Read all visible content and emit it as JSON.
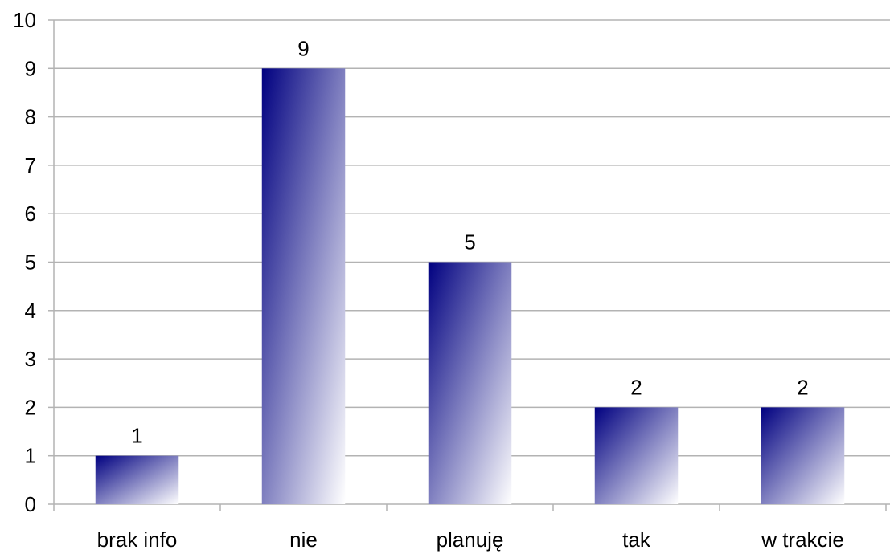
{
  "chart_data": {
    "type": "bar",
    "categories": [
      "brak info",
      "nie",
      "planuję",
      "tak",
      "w trakcie"
    ],
    "values": [
      1,
      9,
      5,
      2,
      2
    ],
    "data_labels": [
      "1",
      "9",
      "5",
      "2",
      "2"
    ],
    "y_ticks": [
      "0",
      "1",
      "2",
      "3",
      "4",
      "5",
      "6",
      "7",
      "8",
      "9",
      "10"
    ],
    "ylim": [
      0,
      10
    ],
    "grid": true,
    "legend": "none",
    "colors": {
      "bar_top": "#000080",
      "bar_bottom": "#ffffff",
      "grid": "#b3b3b3",
      "axis": "#b3b3b3",
      "text": "#000000"
    }
  }
}
